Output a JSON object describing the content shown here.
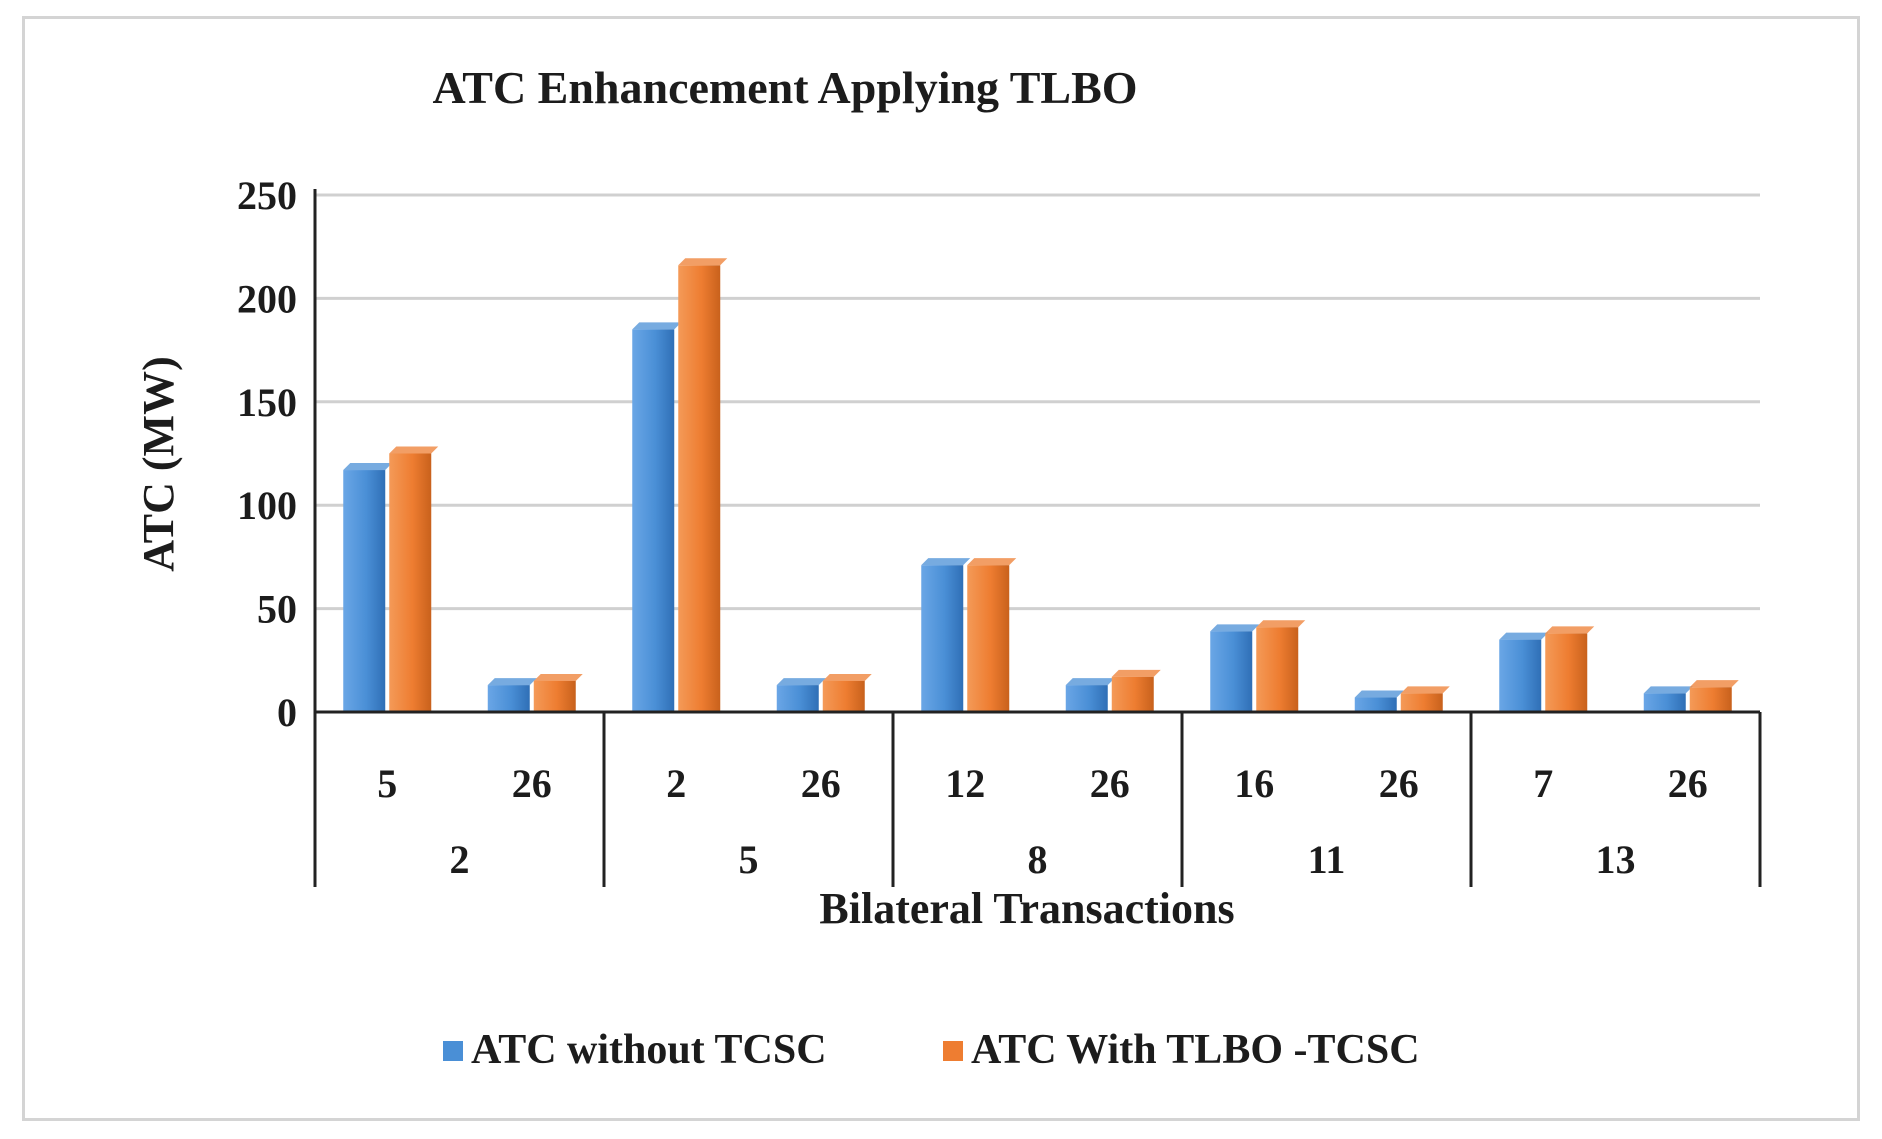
{
  "chart_data": {
    "type": "bar",
    "title": "ATC Enhancement Applying TLBO",
    "xlabel": "Bilateral Transactions",
    "ylabel": "ATC (MW)",
    "ylim": [
      0,
      250
    ],
    "yticks": [
      0,
      50,
      100,
      150,
      200,
      250
    ],
    "grid": true,
    "legend_position": "bottom",
    "categories": [
      "5",
      "26",
      "2",
      "26",
      "12",
      "26",
      "16",
      "26",
      "7",
      "26"
    ],
    "groups": [
      {
        "label": "2",
        "span": 2
      },
      {
        "label": "5",
        "span": 2
      },
      {
        "label": "8",
        "span": 2
      },
      {
        "label": "11",
        "span": 2
      },
      {
        "label": "13",
        "span": 2
      }
    ],
    "series": [
      {
        "name": "ATC without TCSC",
        "color": "#4a8fd6",
        "values": [
          117,
          13,
          185,
          13,
          71,
          13,
          39,
          7,
          35,
          9
        ]
      },
      {
        "name": "ATC With TLBO -TCSC",
        "color": "#ee7d31",
        "values": [
          125,
          15,
          216,
          15,
          71,
          17,
          41,
          9,
          38,
          12
        ]
      }
    ]
  }
}
